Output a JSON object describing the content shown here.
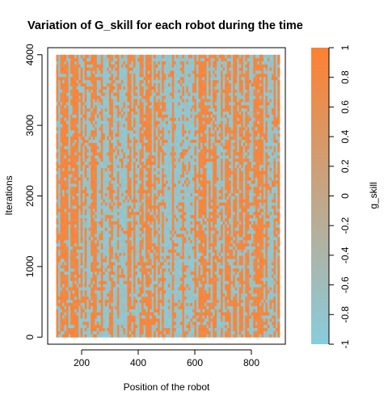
{
  "chart_data": {
    "type": "heatmap",
    "title": "Variation of G_skill for each robot during the time",
    "xlabel": "Position of the robot",
    "ylabel": "Iterations",
    "xlim": [
      80,
      920
    ],
    "ylim": [
      -100,
      4100
    ],
    "data_extent": {
      "x": [
        110,
        900
      ],
      "y": [
        0,
        4000
      ]
    },
    "x_ticks": [
      200,
      400,
      600,
      800
    ],
    "y_ticks": [
      0,
      1000,
      2000,
      3000,
      4000
    ],
    "color_scale": {
      "label": "g_skill",
      "min": -1,
      "max": 1,
      "low_color": "#88CCDD",
      "high_color": "#FF8030",
      "ticks": [
        -1,
        -0.8,
        -0.6,
        -0.4,
        -0.2,
        0,
        0.2,
        0.4,
        0.6,
        0.8,
        1
      ],
      "tick_labels": [
        "-1",
        "-0.8",
        "-0.6",
        "-0.4",
        "-0.2",
        "0",
        "0.2",
        "0.4",
        "0.6",
        "0.8",
        "1"
      ]
    },
    "pattern": "dense striped grid of g_skill values alternating between approximately -1 (light blue) and 1 (orange)"
  }
}
